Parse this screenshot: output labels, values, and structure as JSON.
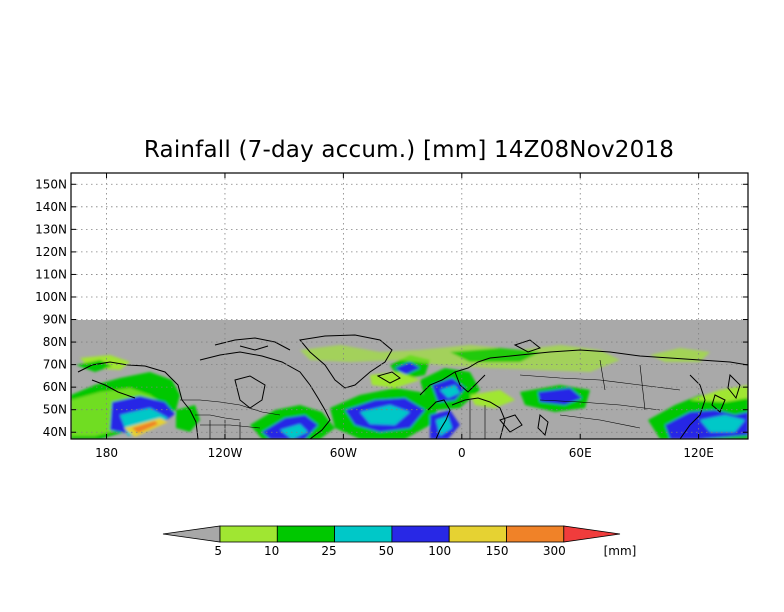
{
  "title": "Rainfall (7-day accum.) [mm] 14Z08Nov2018",
  "map": {
    "lon_range": [
      -198,
      145
    ],
    "lat_range": [
      37,
      155
    ],
    "data_lat_top": 90,
    "lat_ticks": [
      "150N",
      "140N",
      "130N",
      "120N",
      "110N",
      "100N",
      "90N",
      "80N",
      "70N",
      "60N",
      "50N",
      "40N"
    ],
    "lat_values": [
      150,
      140,
      130,
      120,
      110,
      100,
      90,
      80,
      70,
      60,
      50,
      40
    ],
    "lon_ticks": [
      "180",
      "120W",
      "60W",
      "0",
      "60E",
      "120E"
    ],
    "lon_values": [
      -180,
      -120,
      -60,
      0,
      60,
      120
    ],
    "background_color": "#a9a9a9"
  },
  "colorbar": {
    "unit": "[mm]",
    "labels": [
      "5",
      "10",
      "25",
      "50",
      "100",
      "150",
      "300"
    ],
    "colors": [
      "#a8a8a8",
      "#a0e632",
      "#00c800",
      "#00c8c8",
      "#2828e6",
      "#e6d232",
      "#f08228",
      "#f03c3c"
    ]
  }
}
